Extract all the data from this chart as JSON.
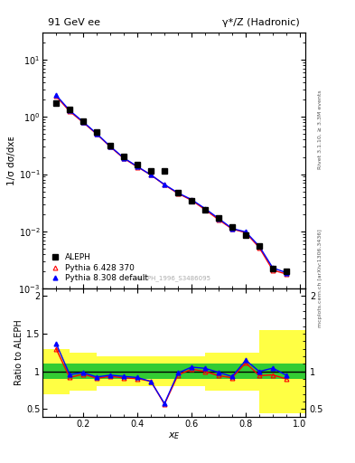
{
  "title_left": "91 GeV ee",
  "title_right": "γ*/Z (Hadronic)",
  "ylabel_main": "1/σ dσ/dxᴇ",
  "ylabel_ratio": "Ratio to ALEPH",
  "xlabel": "x_E",
  "watermark": "ALEPH_1996_S3486095",
  "rivet_label": "Rivet 3.1.10, ≥ 3.3M events",
  "arxiv_label": "mcplots.cern.ch [arXiv:1306.3436]",
  "aleph_x": [
    0.1,
    0.15,
    0.2,
    0.25,
    0.3,
    0.35,
    0.4,
    0.45,
    0.5,
    0.55,
    0.6,
    0.65,
    0.7,
    0.75,
    0.8,
    0.85,
    0.9,
    0.95
  ],
  "aleph_y": [
    1.75,
    1.35,
    0.83,
    0.55,
    0.32,
    0.205,
    0.148,
    0.112,
    0.115,
    0.048,
    0.034,
    0.024,
    0.017,
    0.012,
    0.0085,
    0.0055,
    0.0022,
    0.002
  ],
  "pythia6_x": [
    0.1,
    0.15,
    0.2,
    0.25,
    0.3,
    0.35,
    0.4,
    0.45,
    0.5,
    0.55,
    0.6,
    0.65,
    0.7,
    0.75,
    0.8,
    0.85,
    0.9,
    0.95
  ],
  "pythia6_y": [
    2.3,
    1.25,
    0.8,
    0.5,
    0.3,
    0.188,
    0.134,
    0.097,
    0.065,
    0.046,
    0.035,
    0.024,
    0.016,
    0.011,
    0.0095,
    0.0052,
    0.0021,
    0.0018
  ],
  "pythia8_x": [
    0.1,
    0.15,
    0.2,
    0.25,
    0.3,
    0.35,
    0.4,
    0.45,
    0.5,
    0.55,
    0.6,
    0.65,
    0.7,
    0.75,
    0.8,
    0.85,
    0.9,
    0.95
  ],
  "pythia8_y": [
    2.4,
    1.3,
    0.82,
    0.51,
    0.305,
    0.192,
    0.136,
    0.097,
    0.066,
    0.047,
    0.036,
    0.025,
    0.0168,
    0.0112,
    0.0098,
    0.0055,
    0.0023,
    0.0019
  ],
  "ratio6_x": [
    0.1,
    0.15,
    0.2,
    0.25,
    0.3,
    0.35,
    0.4,
    0.45,
    0.5,
    0.55,
    0.6,
    0.65,
    0.7,
    0.75,
    0.8,
    0.85,
    0.9,
    0.95
  ],
  "ratio6_y": [
    1.3,
    0.92,
    0.965,
    0.91,
    0.935,
    0.915,
    0.905,
    0.87,
    0.565,
    0.955,
    1.03,
    1.0,
    0.944,
    0.917,
    1.115,
    0.945,
    0.955,
    0.9
  ],
  "ratio8_x": [
    0.1,
    0.15,
    0.2,
    0.25,
    0.3,
    0.35,
    0.4,
    0.45,
    0.5,
    0.55,
    0.6,
    0.65,
    0.7,
    0.75,
    0.8,
    0.85,
    0.9,
    0.95
  ],
  "ratio8_y": [
    1.37,
    0.96,
    0.985,
    0.927,
    0.952,
    0.935,
    0.92,
    0.868,
    0.575,
    0.98,
    1.058,
    1.042,
    0.988,
    0.933,
    1.15,
    1.0,
    1.045,
    0.95
  ],
  "band_edges": [
    0.05,
    0.15,
    0.25,
    0.35,
    0.45,
    0.55,
    0.65,
    0.75,
    0.85,
    0.95,
    1.05
  ],
  "band_green_lo": [
    0.9,
    0.9,
    0.9,
    0.9,
    0.9,
    0.9,
    0.9,
    0.9,
    0.9,
    0.9
  ],
  "band_green_hi": [
    1.1,
    1.1,
    1.1,
    1.1,
    1.1,
    1.1,
    1.1,
    1.1,
    1.1,
    1.1
  ],
  "band_yellow_lo": [
    0.7,
    0.75,
    0.8,
    0.8,
    0.8,
    0.8,
    0.75,
    0.75,
    0.45,
    0.45
  ],
  "band_yellow_hi": [
    1.3,
    1.25,
    1.2,
    1.2,
    1.2,
    1.2,
    1.25,
    1.25,
    1.55,
    1.55
  ],
  "color_aleph": "black",
  "color_pythia6": "red",
  "color_pythia8": "blue",
  "color_green_band": "#33cc33",
  "color_yellow_band": "#ffff44",
  "ylim_main": [
    0.001,
    30
  ],
  "ylim_ratio": [
    0.4,
    2.1
  ],
  "xlim": [
    0.05,
    1.02
  ]
}
